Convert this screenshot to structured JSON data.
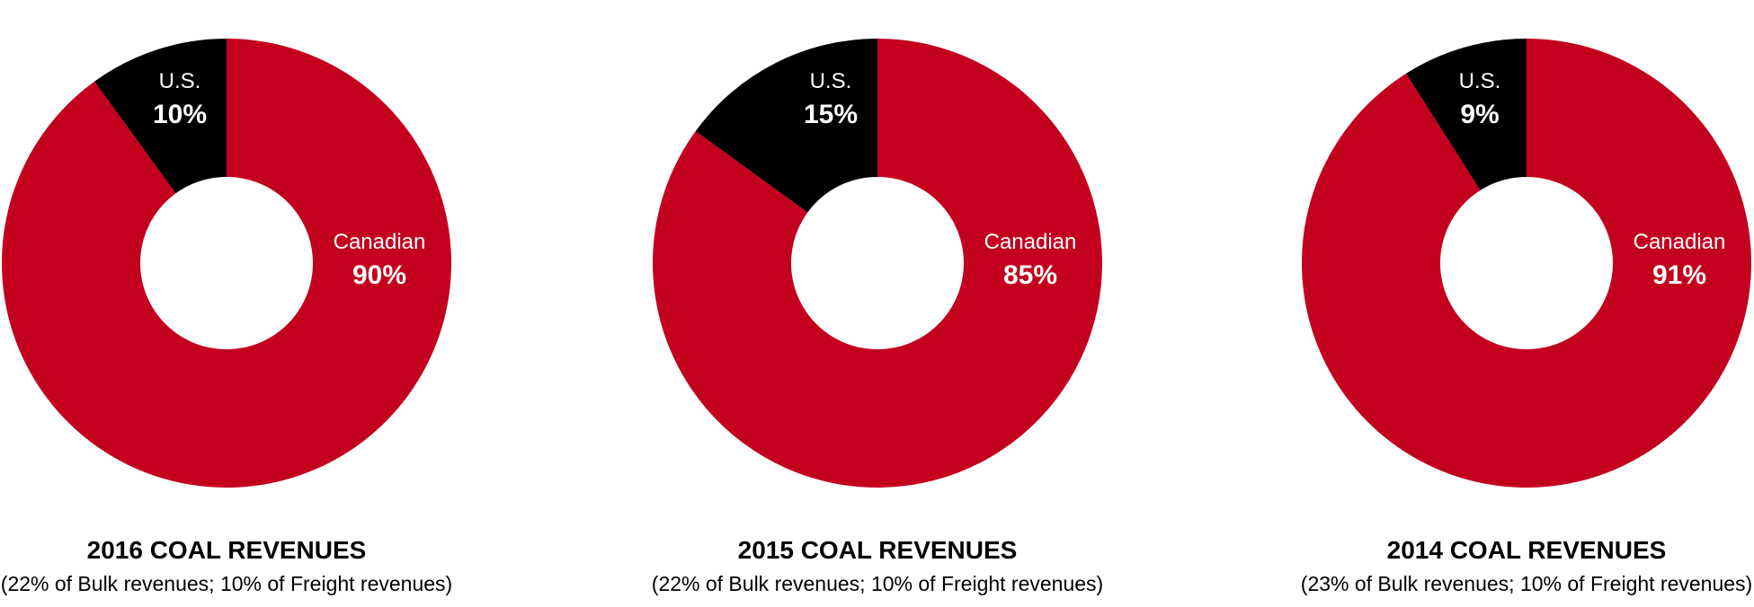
{
  "colors": {
    "canadian": "#c4001f",
    "us": "#000000",
    "hole": "#ffffff",
    "label_on_red": "#ffffff",
    "label_on_black": "#ffffff"
  },
  "chart_data": [
    {
      "type": "pie",
      "title": "2016 COAL REVENUES",
      "subtitle": "(22% of Bulk revenues; 10% of Freight revenues)",
      "slices": [
        {
          "label": "Canadian",
          "value": 90,
          "display": "90%",
          "color": "#c4001f"
        },
        {
          "label": "U.S.",
          "value": 10,
          "display": "10%",
          "color": "#000000"
        }
      ]
    },
    {
      "type": "pie",
      "title": "2015 COAL REVENUES",
      "subtitle": "(22% of Bulk revenues; 10% of Freight revenues)",
      "slices": [
        {
          "label": "Canadian",
          "value": 85,
          "display": "85%",
          "color": "#c4001f"
        },
        {
          "label": "U.S.",
          "value": 15,
          "display": "15%",
          "color": "#000000"
        }
      ]
    },
    {
      "type": "pie",
      "title": "2014 COAL REVENUES",
      "subtitle": "(23% of Bulk revenues; 10% of Freight revenues)",
      "slices": [
        {
          "label": "Canadian",
          "value": 91,
          "display": "91%",
          "color": "#c4001f"
        },
        {
          "label": "U.S.",
          "value": 9,
          "display": "9%",
          "color": "#000000"
        }
      ]
    }
  ]
}
